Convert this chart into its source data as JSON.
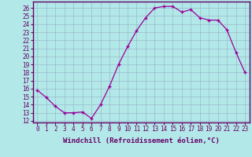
{
  "x": [
    0,
    1,
    2,
    3,
    4,
    5,
    6,
    7,
    8,
    9,
    10,
    11,
    12,
    13,
    14,
    15,
    16,
    17,
    18,
    19,
    20,
    21,
    22,
    23
  ],
  "y": [
    15.8,
    14.9,
    13.8,
    13.0,
    13.0,
    13.1,
    12.3,
    14.0,
    16.3,
    19.0,
    21.2,
    23.2,
    24.8,
    26.0,
    26.2,
    26.2,
    25.5,
    25.8,
    24.8,
    24.5,
    24.5,
    23.3,
    20.5,
    18.0
  ],
  "line_color": "#990099",
  "marker": "+",
  "bg_color": "#b3e8e8",
  "grid_color": "#99bbcc",
  "xlabel": "Windchill (Refroidissement éolien,°C)",
  "ylabel": "",
  "ylim": [
    11.8,
    26.8
  ],
  "xlim": [
    -0.5,
    23.5
  ],
  "yticks": [
    12,
    13,
    14,
    15,
    16,
    17,
    18,
    19,
    20,
    21,
    22,
    23,
    24,
    25,
    26
  ],
  "xticks": [
    0,
    1,
    2,
    3,
    4,
    5,
    6,
    7,
    8,
    9,
    10,
    11,
    12,
    13,
    14,
    15,
    16,
    17,
    18,
    19,
    20,
    21,
    22,
    23
  ],
  "tick_fontsize": 5.5,
  "xlabel_fontsize": 6.5,
  "label_color": "#660066",
  "spine_color": "#660066"
}
